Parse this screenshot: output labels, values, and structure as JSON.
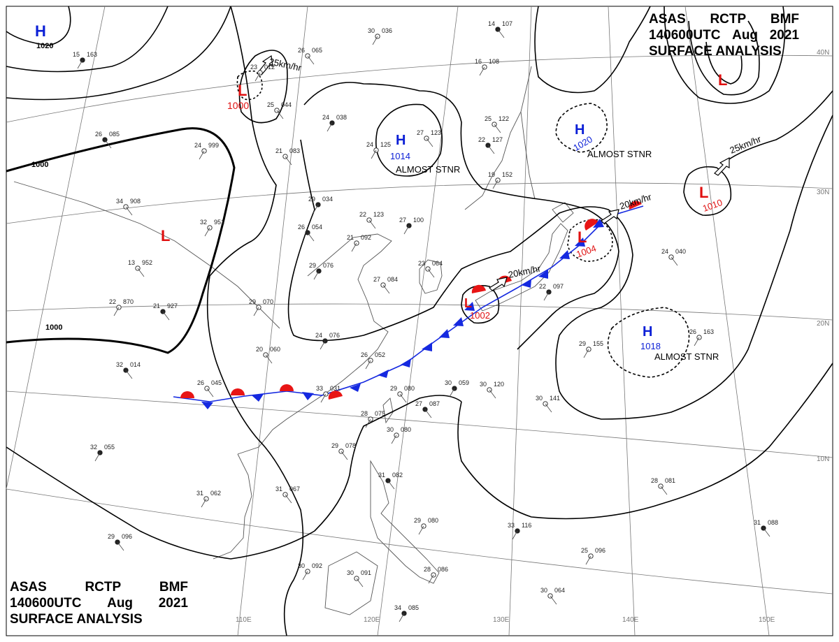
{
  "header": {
    "line1": [
      "ASAS",
      "RCTP",
      "BMF"
    ],
    "line2": [
      "140600UTC",
      "Aug",
      "2021"
    ],
    "line3": "SURFACE ANALYSIS"
  },
  "lat_labels": [
    "40N",
    "30N",
    "20N",
    "10N"
  ],
  "lon_labels": [
    "110E",
    "120E",
    "130E",
    "140E",
    "150E"
  ],
  "isobar_labels": [
    "1020",
    "1000",
    "1000"
  ],
  "pressure_centers": [
    {
      "kind": "H",
      "value": "1020",
      "note": ""
    },
    {
      "kind": "L",
      "value": "1000",
      "note": ""
    },
    {
      "kind": "H",
      "value": "1014",
      "note": "ALMOST STNR"
    },
    {
      "kind": "H",
      "value": "1020",
      "note": "ALMOST STNR"
    },
    {
      "kind": "L",
      "value": "",
      "note": ""
    },
    {
      "kind": "L",
      "value": "1010",
      "note": ""
    },
    {
      "kind": "L",
      "value": "1004",
      "note": ""
    },
    {
      "kind": "L",
      "value": "1002",
      "note": ""
    },
    {
      "kind": "H",
      "value": "1018",
      "note": "ALMOST STNR"
    },
    {
      "kind": "L",
      "value": "",
      "note": ""
    }
  ],
  "motions": [
    "25km/hr",
    "25km/hr",
    "20km/hr",
    "20km/hr"
  ],
  "stations": [
    {
      "t": "15",
      "p": "163"
    },
    {
      "t": "26",
      "p": "065"
    },
    {
      "t": "30",
      "p": "036"
    },
    {
      "t": "14",
      "p": "107"
    },
    {
      "t": "23",
      "p": "012"
    },
    {
      "t": "25",
      "p": "044"
    },
    {
      "t": "24",
      "p": "038"
    },
    {
      "t": "27",
      "p": "123"
    },
    {
      "t": "24",
      "p": "125"
    },
    {
      "t": "26",
      "p": "085"
    },
    {
      "t": "24",
      "p": "999"
    },
    {
      "t": "21",
      "p": "083"
    },
    {
      "t": "29",
      "p": "034"
    },
    {
      "t": "34",
      "p": "908"
    },
    {
      "t": "32",
      "p": "951"
    },
    {
      "t": "26",
      "p": "054"
    },
    {
      "t": "21",
      "p": "092"
    },
    {
      "t": "22",
      "p": "123"
    },
    {
      "t": "27",
      "p": "100"
    },
    {
      "t": "25",
      "p": "122"
    },
    {
      "t": "16",
      "p": "108"
    },
    {
      "t": "22",
      "p": "127"
    },
    {
      "t": "19",
      "p": "152"
    },
    {
      "t": "13",
      "p": "952"
    },
    {
      "t": "29",
      "p": "076"
    },
    {
      "t": "23",
      "p": "064"
    },
    {
      "t": "22",
      "p": "870"
    },
    {
      "t": "21",
      "p": "927"
    },
    {
      "t": "29",
      "p": "070"
    },
    {
      "t": "27",
      "p": "084"
    },
    {
      "t": "24",
      "p": "076"
    },
    {
      "t": "20",
      "p": "060"
    },
    {
      "t": "26",
      "p": "052"
    },
    {
      "t": "32",
      "p": "014"
    },
    {
      "t": "33",
      "p": "031"
    },
    {
      "t": "29",
      "p": "080"
    },
    {
      "t": "30",
      "p": "059"
    },
    {
      "t": "30",
      "p": "120"
    },
    {
      "t": "28",
      "p": "075"
    },
    {
      "t": "27",
      "p": "087"
    },
    {
      "t": "30",
      "p": "080"
    },
    {
      "t": "29",
      "p": "078"
    },
    {
      "t": "32",
      "p": "055"
    },
    {
      "t": "31",
      "p": "067"
    },
    {
      "t": "31",
      "p": "062"
    },
    {
      "t": "29",
      "p": "096"
    },
    {
      "t": "30",
      "p": "092"
    },
    {
      "t": "30",
      "p": "091"
    },
    {
      "t": "34",
      "p": "085"
    },
    {
      "t": "30",
      "p": "064"
    },
    {
      "t": "28",
      "p": "086"
    },
    {
      "t": "31",
      "p": "082"
    },
    {
      "t": "29",
      "p": "080"
    },
    {
      "t": "30",
      "p": "141"
    },
    {
      "t": "33",
      "p": "116"
    },
    {
      "t": "28",
      "p": "081"
    },
    {
      "t": "25",
      "p": "096"
    },
    {
      "t": "31",
      "p": "088"
    },
    {
      "t": "29",
      "p": "155"
    },
    {
      "t": "24",
      "p": "040"
    },
    {
      "t": "22",
      "p": "097"
    },
    {
      "t": "26",
      "p": "045"
    },
    {
      "t": "26",
      "p": "163"
    }
  ],
  "colors": {
    "high": "#0b1fd6",
    "low": "#e01010",
    "front_warm": "#e81515",
    "front_cold": "#1529e0",
    "isobar": "#000000",
    "coast": "#555555"
  }
}
